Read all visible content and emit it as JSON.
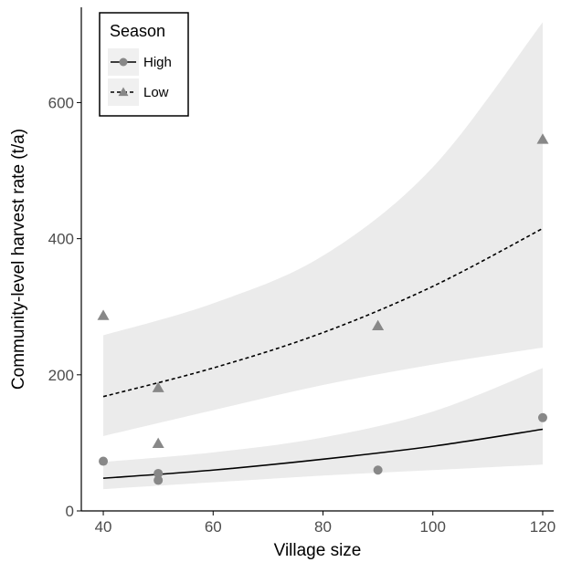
{
  "chart_data": {
    "type": "scatter",
    "xlabel": "Village size",
    "ylabel": "Community-level harvest rate (t/a)",
    "xlim": [
      36,
      122
    ],
    "ylim": [
      0,
      740
    ],
    "xticks": [
      40,
      60,
      80,
      100,
      120
    ],
    "yticks": [
      0,
      200,
      400,
      600
    ],
    "grid": false,
    "legend": {
      "title": "Season",
      "position": "top-left"
    },
    "series": [
      {
        "name": "High",
        "marker": "circle",
        "line_style": "solid",
        "color": "#888888",
        "line_color": "#000000",
        "points": [
          {
            "x": 40,
            "y": 73
          },
          {
            "x": 50,
            "y": 55
          },
          {
            "x": 50,
            "y": 45
          },
          {
            "x": 90,
            "y": 60
          },
          {
            "x": 120,
            "y": 137
          }
        ],
        "fit": [
          {
            "x": 40,
            "y": 48
          },
          {
            "x": 60,
            "y": 60
          },
          {
            "x": 80,
            "y": 76
          },
          {
            "x": 100,
            "y": 95
          },
          {
            "x": 120,
            "y": 120
          }
        ],
        "ci_upper": [
          {
            "x": 40,
            "y": 72
          },
          {
            "x": 60,
            "y": 86
          },
          {
            "x": 80,
            "y": 108
          },
          {
            "x": 100,
            "y": 146
          },
          {
            "x": 120,
            "y": 210
          }
        ],
        "ci_lower": [
          {
            "x": 40,
            "y": 32
          },
          {
            "x": 60,
            "y": 42
          },
          {
            "x": 80,
            "y": 52
          },
          {
            "x": 100,
            "y": 60
          },
          {
            "x": 120,
            "y": 68
          }
        ]
      },
      {
        "name": "Low",
        "marker": "triangle",
        "line_style": "dashed",
        "color": "#888888",
        "line_color": "#000000",
        "points": [
          {
            "x": 40,
            "y": 287
          },
          {
            "x": 50,
            "y": 181
          },
          {
            "x": 50,
            "y": 99
          },
          {
            "x": 90,
            "y": 272
          },
          {
            "x": 120,
            "y": 546
          }
        ],
        "fit": [
          {
            "x": 40,
            "y": 168
          },
          {
            "x": 60,
            "y": 210
          },
          {
            "x": 80,
            "y": 262
          },
          {
            "x": 100,
            "y": 330
          },
          {
            "x": 120,
            "y": 415
          }
        ],
        "ci_upper": [
          {
            "x": 40,
            "y": 258
          },
          {
            "x": 60,
            "y": 305
          },
          {
            "x": 80,
            "y": 375
          },
          {
            "x": 100,
            "y": 505
          },
          {
            "x": 120,
            "y": 718
          }
        ],
        "ci_lower": [
          {
            "x": 40,
            "y": 110
          },
          {
            "x": 60,
            "y": 148
          },
          {
            "x": 80,
            "y": 185
          },
          {
            "x": 100,
            "y": 215
          },
          {
            "x": 120,
            "y": 240
          }
        ]
      }
    ]
  },
  "colors": {
    "background": "#ffffff",
    "ribbon": "#ebebeb",
    "point": "#888888",
    "line": "#000000",
    "axis": "#000000",
    "tick_label": "#4d4d4d",
    "legend_key_bg": "#f0f0f0"
  }
}
